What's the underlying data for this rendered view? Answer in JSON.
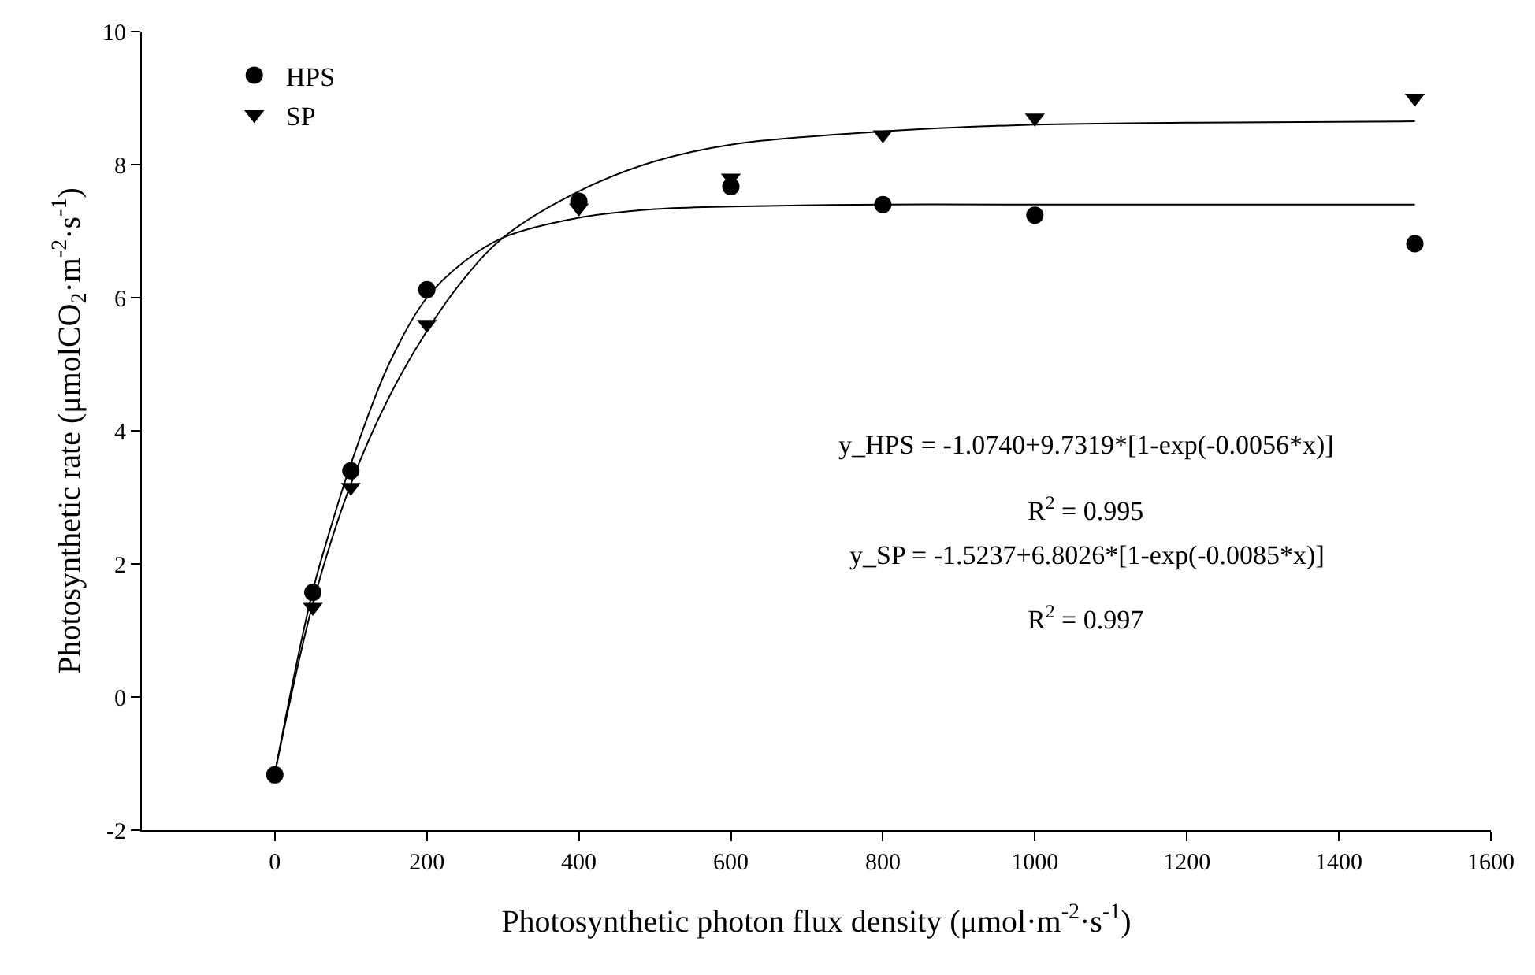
{
  "chart_data": {
    "type": "scatter",
    "xlabel": "Photosynthetic photon flux density (μmol·m$^{-2}$·s$^{-1}$)",
    "ylabel": "Photosynthetic rate (μmolCO$_{2}$·m$^{-2}$·s$^{-1}$)",
    "xlim": [
      -175,
      1600
    ],
    "xticks": [
      0,
      200,
      400,
      600,
      800,
      1000,
      1200,
      1400,
      1600
    ],
    "ylim": [
      -2,
      10
    ],
    "yticks": [
      -2,
      0,
      2,
      4,
      6,
      8,
      10
    ],
    "legend": "top left",
    "series": [
      {
        "name": "HPS",
        "marker": "circle",
        "color": "#000000",
        "x": [
          0,
          50,
          100,
          200,
          400,
          600,
          800,
          1000,
          1500
        ],
        "values": [
          -1.17,
          1.57,
          3.4,
          6.12,
          7.45,
          7.67,
          7.4,
          7.24,
          6.81
        ]
      },
      {
        "name": "SP",
        "marker": "triangle",
        "color": "#000000",
        "x": [
          50,
          100,
          200,
          400,
          600,
          800,
          1000,
          1500
        ],
        "values": [
          1.35,
          3.15,
          5.6,
          7.35,
          7.8,
          8.45,
          8.7,
          9.0
        ]
      },
      {
        "type": "line",
        "marker": "none",
        "line_style": "solid",
        "color": "#000000",
        "x": [
          0,
          25,
          50,
          75,
          100,
          150,
          200,
          250,
          300,
          400,
          500,
          600,
          800,
          1000,
          1500
        ],
        "values": [
          -1.15,
          0.3,
          1.6,
          2.6,
          3.5,
          5.0,
          6.0,
          6.55,
          6.9,
          7.2,
          7.33,
          7.37,
          7.4,
          7.4,
          7.4
        ]
      },
      {
        "type": "line",
        "marker": "none",
        "line_style": "solid",
        "color": "#000000",
        "x": [
          0,
          50,
          100,
          150,
          200,
          250,
          300,
          400,
          500,
          600,
          800,
          1000,
          1200,
          1500
        ],
        "values": [
          -1.15,
          1.4,
          3.2,
          4.5,
          5.5,
          6.3,
          6.9,
          7.6,
          8.05,
          8.3,
          8.5,
          8.6,
          8.63,
          8.65
        ]
      }
    ],
    "annotations": [
      "y_HPS = -1.0740+9.7319*[1-exp(-0.0056*x)]",
      "R$^{2}$ = 0.995",
      "y_SP = -1.5237+6.8026*[1-exp(-0.0085*x)]",
      "R$^{2}$ = 0.997"
    ]
  }
}
